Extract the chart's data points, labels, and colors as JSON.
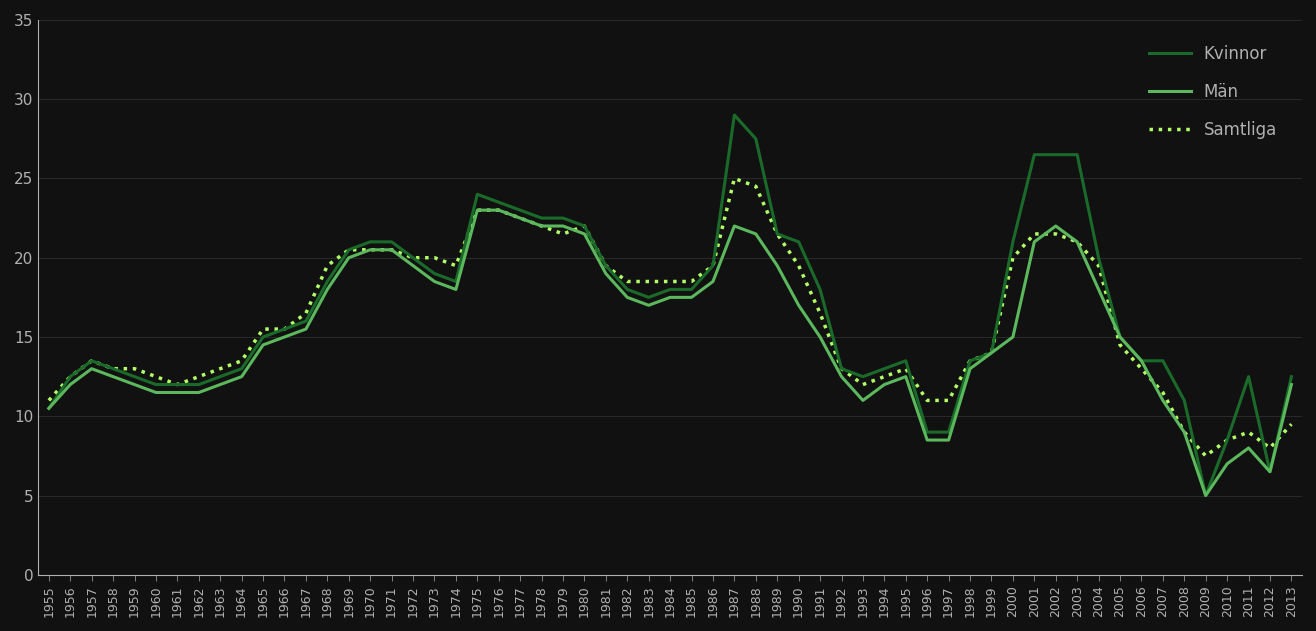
{
  "years": [
    1955,
    1956,
    1957,
    1958,
    1959,
    1960,
    1961,
    1962,
    1963,
    1964,
    1965,
    1966,
    1967,
    1968,
    1969,
    1970,
    1971,
    1972,
    1973,
    1974,
    1975,
    1976,
    1977,
    1978,
    1979,
    1980,
    1981,
    1982,
    1983,
    1984,
    1985,
    1986,
    1987,
    1988,
    1989,
    1990,
    1991,
    1992,
    1993,
    1994,
    1995,
    1996,
    1997,
    1998,
    1999,
    2000,
    2001,
    2002,
    2003,
    2004,
    2005,
    2006,
    2007,
    2008,
    2009,
    2010,
    2011,
    2012,
    2013
  ],
  "kvinnor": [
    10.5,
    12.5,
    13.5,
    13.0,
    12.5,
    12.0,
    12.0,
    12.0,
    12.5,
    13.0,
    15.0,
    15.5,
    16.0,
    18.5,
    20.5,
    21.0,
    21.0,
    20.0,
    19.0,
    18.5,
    24.0,
    23.5,
    23.0,
    22.5,
    22.5,
    22.0,
    19.5,
    18.0,
    17.5,
    18.0,
    18.0,
    19.5,
    29.0,
    27.5,
    21.5,
    21.0,
    18.0,
    13.0,
    12.5,
    13.0,
    13.5,
    9.0,
    9.0,
    13.5,
    14.0,
    21.0,
    26.5,
    26.5,
    26.5,
    20.0,
    15.0,
    13.5,
    13.5,
    11.0,
    5.0,
    8.5,
    12.5,
    6.5,
    12.5
  ],
  "man": [
    10.5,
    12.0,
    13.0,
    12.5,
    12.0,
    11.5,
    11.5,
    11.5,
    12.0,
    12.5,
    14.5,
    15.0,
    15.5,
    18.0,
    20.0,
    20.5,
    20.5,
    19.5,
    18.5,
    18.0,
    23.0,
    23.0,
    22.5,
    22.0,
    22.0,
    21.5,
    19.0,
    17.5,
    17.0,
    17.5,
    17.5,
    18.5,
    22.0,
    21.5,
    19.5,
    17.0,
    15.0,
    12.5,
    11.0,
    12.0,
    12.5,
    8.5,
    8.5,
    13.0,
    14.0,
    15.0,
    21.0,
    22.0,
    21.0,
    18.0,
    15.0,
    13.5,
    11.0,
    9.0,
    5.0,
    7.0,
    8.0,
    6.5,
    12.0
  ],
  "samtliga": [
    11.0,
    12.5,
    13.5,
    13.0,
    13.0,
    12.5,
    12.0,
    12.5,
    13.0,
    13.5,
    15.5,
    15.5,
    16.5,
    19.5,
    20.5,
    20.5,
    20.5,
    20.0,
    20.0,
    19.5,
    23.0,
    23.0,
    22.5,
    22.0,
    21.5,
    22.0,
    19.5,
    18.5,
    18.5,
    18.5,
    18.5,
    19.5,
    25.0,
    24.5,
    21.5,
    19.5,
    16.5,
    13.0,
    12.0,
    12.5,
    13.0,
    11.0,
    11.0,
    13.5,
    14.0,
    20.0,
    21.5,
    21.5,
    21.0,
    19.5,
    14.5,
    13.0,
    11.5,
    9.0,
    7.5,
    8.5,
    9.0,
    8.0,
    9.5
  ],
  "color_kvinnor": "#1a6b2a",
  "color_man": "#5cb85c",
  "color_samtliga": "#b3ff66",
  "background_color": "#111111",
  "text_color": "#b0b0b0",
  "grid_color": "#2a2a2a",
  "ylim": [
    0,
    35
  ],
  "yticks": [
    0,
    5,
    10,
    15,
    20,
    25,
    30,
    35
  ],
  "legend_labels": [
    "Kvinnor",
    "Män",
    "Samtliga"
  ],
  "legend_loc": "upper right"
}
